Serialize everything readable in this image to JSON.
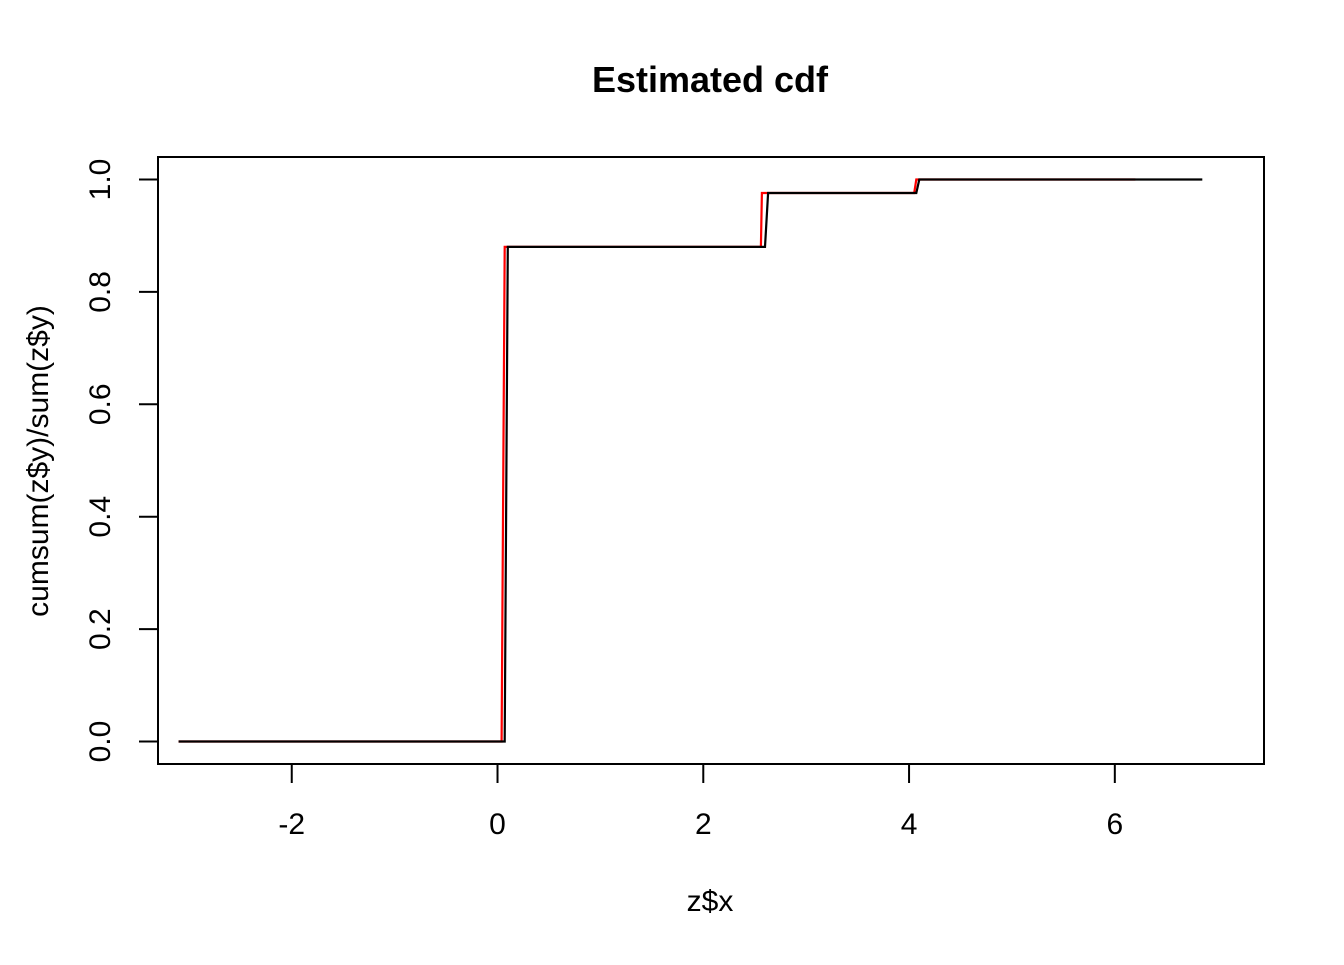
{
  "chart_data": {
    "type": "line",
    "title": "Estimated cdf",
    "xlabel": "z$x",
    "ylabel": "cumsum(z$y)/sum(z$y)",
    "xlim": [
      -3.3,
      7.45
    ],
    "ylim": [
      -0.04,
      1.04
    ],
    "x_ticks": [
      -2,
      0,
      2,
      4,
      6
    ],
    "x_tick_labels": [
      "-2",
      "0",
      "2",
      "4",
      "6"
    ],
    "y_ticks": [
      0.0,
      0.2,
      0.4,
      0.6,
      0.8,
      1.0
    ],
    "y_tick_labels": [
      "0.0",
      "0.2",
      "0.4",
      "0.6",
      "0.8",
      "1.0"
    ],
    "grid": false,
    "legend": "none",
    "series": [
      {
        "color": "#ff0000",
        "x": [
          -3.1,
          0.04,
          0.07,
          2.56,
          2.57,
          4.05,
          4.07,
          6.2
        ],
        "y": [
          0.0,
          0.0,
          0.88,
          0.88,
          0.976,
          0.976,
          1.0,
          1.0
        ]
      },
      {
        "color": "#000000",
        "x": [
          -3.1,
          0.07,
          0.1,
          2.6,
          2.63,
          4.07,
          4.1,
          6.85
        ],
        "y": [
          0.0,
          0.0,
          0.88,
          0.88,
          0.976,
          0.976,
          1.0,
          1.0
        ]
      }
    ]
  }
}
